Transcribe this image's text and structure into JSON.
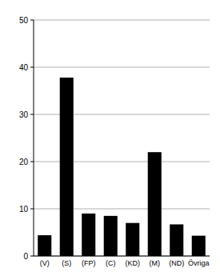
{
  "chart_data": {
    "type": "bar",
    "categories": [
      "(V)",
      "(S)",
      "(FP)",
      "(C)",
      "(KD)",
      "(M)",
      "(ND)",
      "Övriga"
    ],
    "values": [
      4.4,
      37.8,
      9.0,
      8.5,
      7.0,
      22.0,
      6.7,
      4.3
    ],
    "color": "#000000",
    "ylim": [
      0,
      50
    ],
    "yticks": [
      0,
      10,
      20,
      30,
      40,
      50
    ],
    "grid": true
  }
}
